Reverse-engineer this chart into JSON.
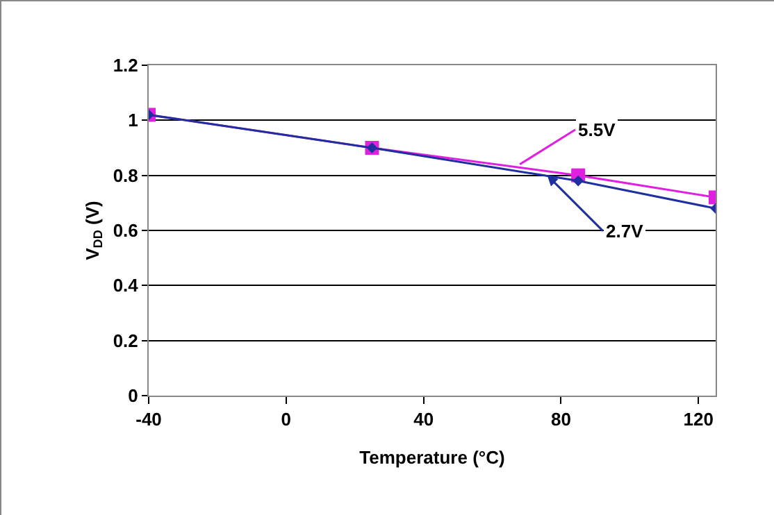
{
  "chart_data": {
    "type": "line",
    "xlabel": "Temperature (°C)",
    "ylabel": "V$_{DD}$ (V)",
    "x": [
      -40,
      25,
      85,
      125
    ],
    "series": [
      {
        "color": "#e020e0",
        "values": [
          1.02,
          0.9,
          0.8,
          0.72
        ],
        "marker": "square"
      },
      {
        "color": "#1f2f9f",
        "values": [
          1.02,
          0.9,
          0.78,
          0.68
        ],
        "marker": "diamond"
      }
    ],
    "annotations": [
      {
        "text": "5.5V",
        "x": 68,
        "y": 0.84
      },
      {
        "text": "2.7V",
        "x": 76,
        "y": 0.8
      }
    ],
    "xlim": [
      -40,
      125
    ],
    "xticks": [
      -40,
      0,
      40,
      80,
      120
    ],
    "ylim": [
      0,
      1.2
    ],
    "yticks": [
      0,
      0.2,
      0.4,
      0.6,
      0.8,
      1,
      1.2
    ],
    "grid": "y",
    "line_style": "solid"
  }
}
